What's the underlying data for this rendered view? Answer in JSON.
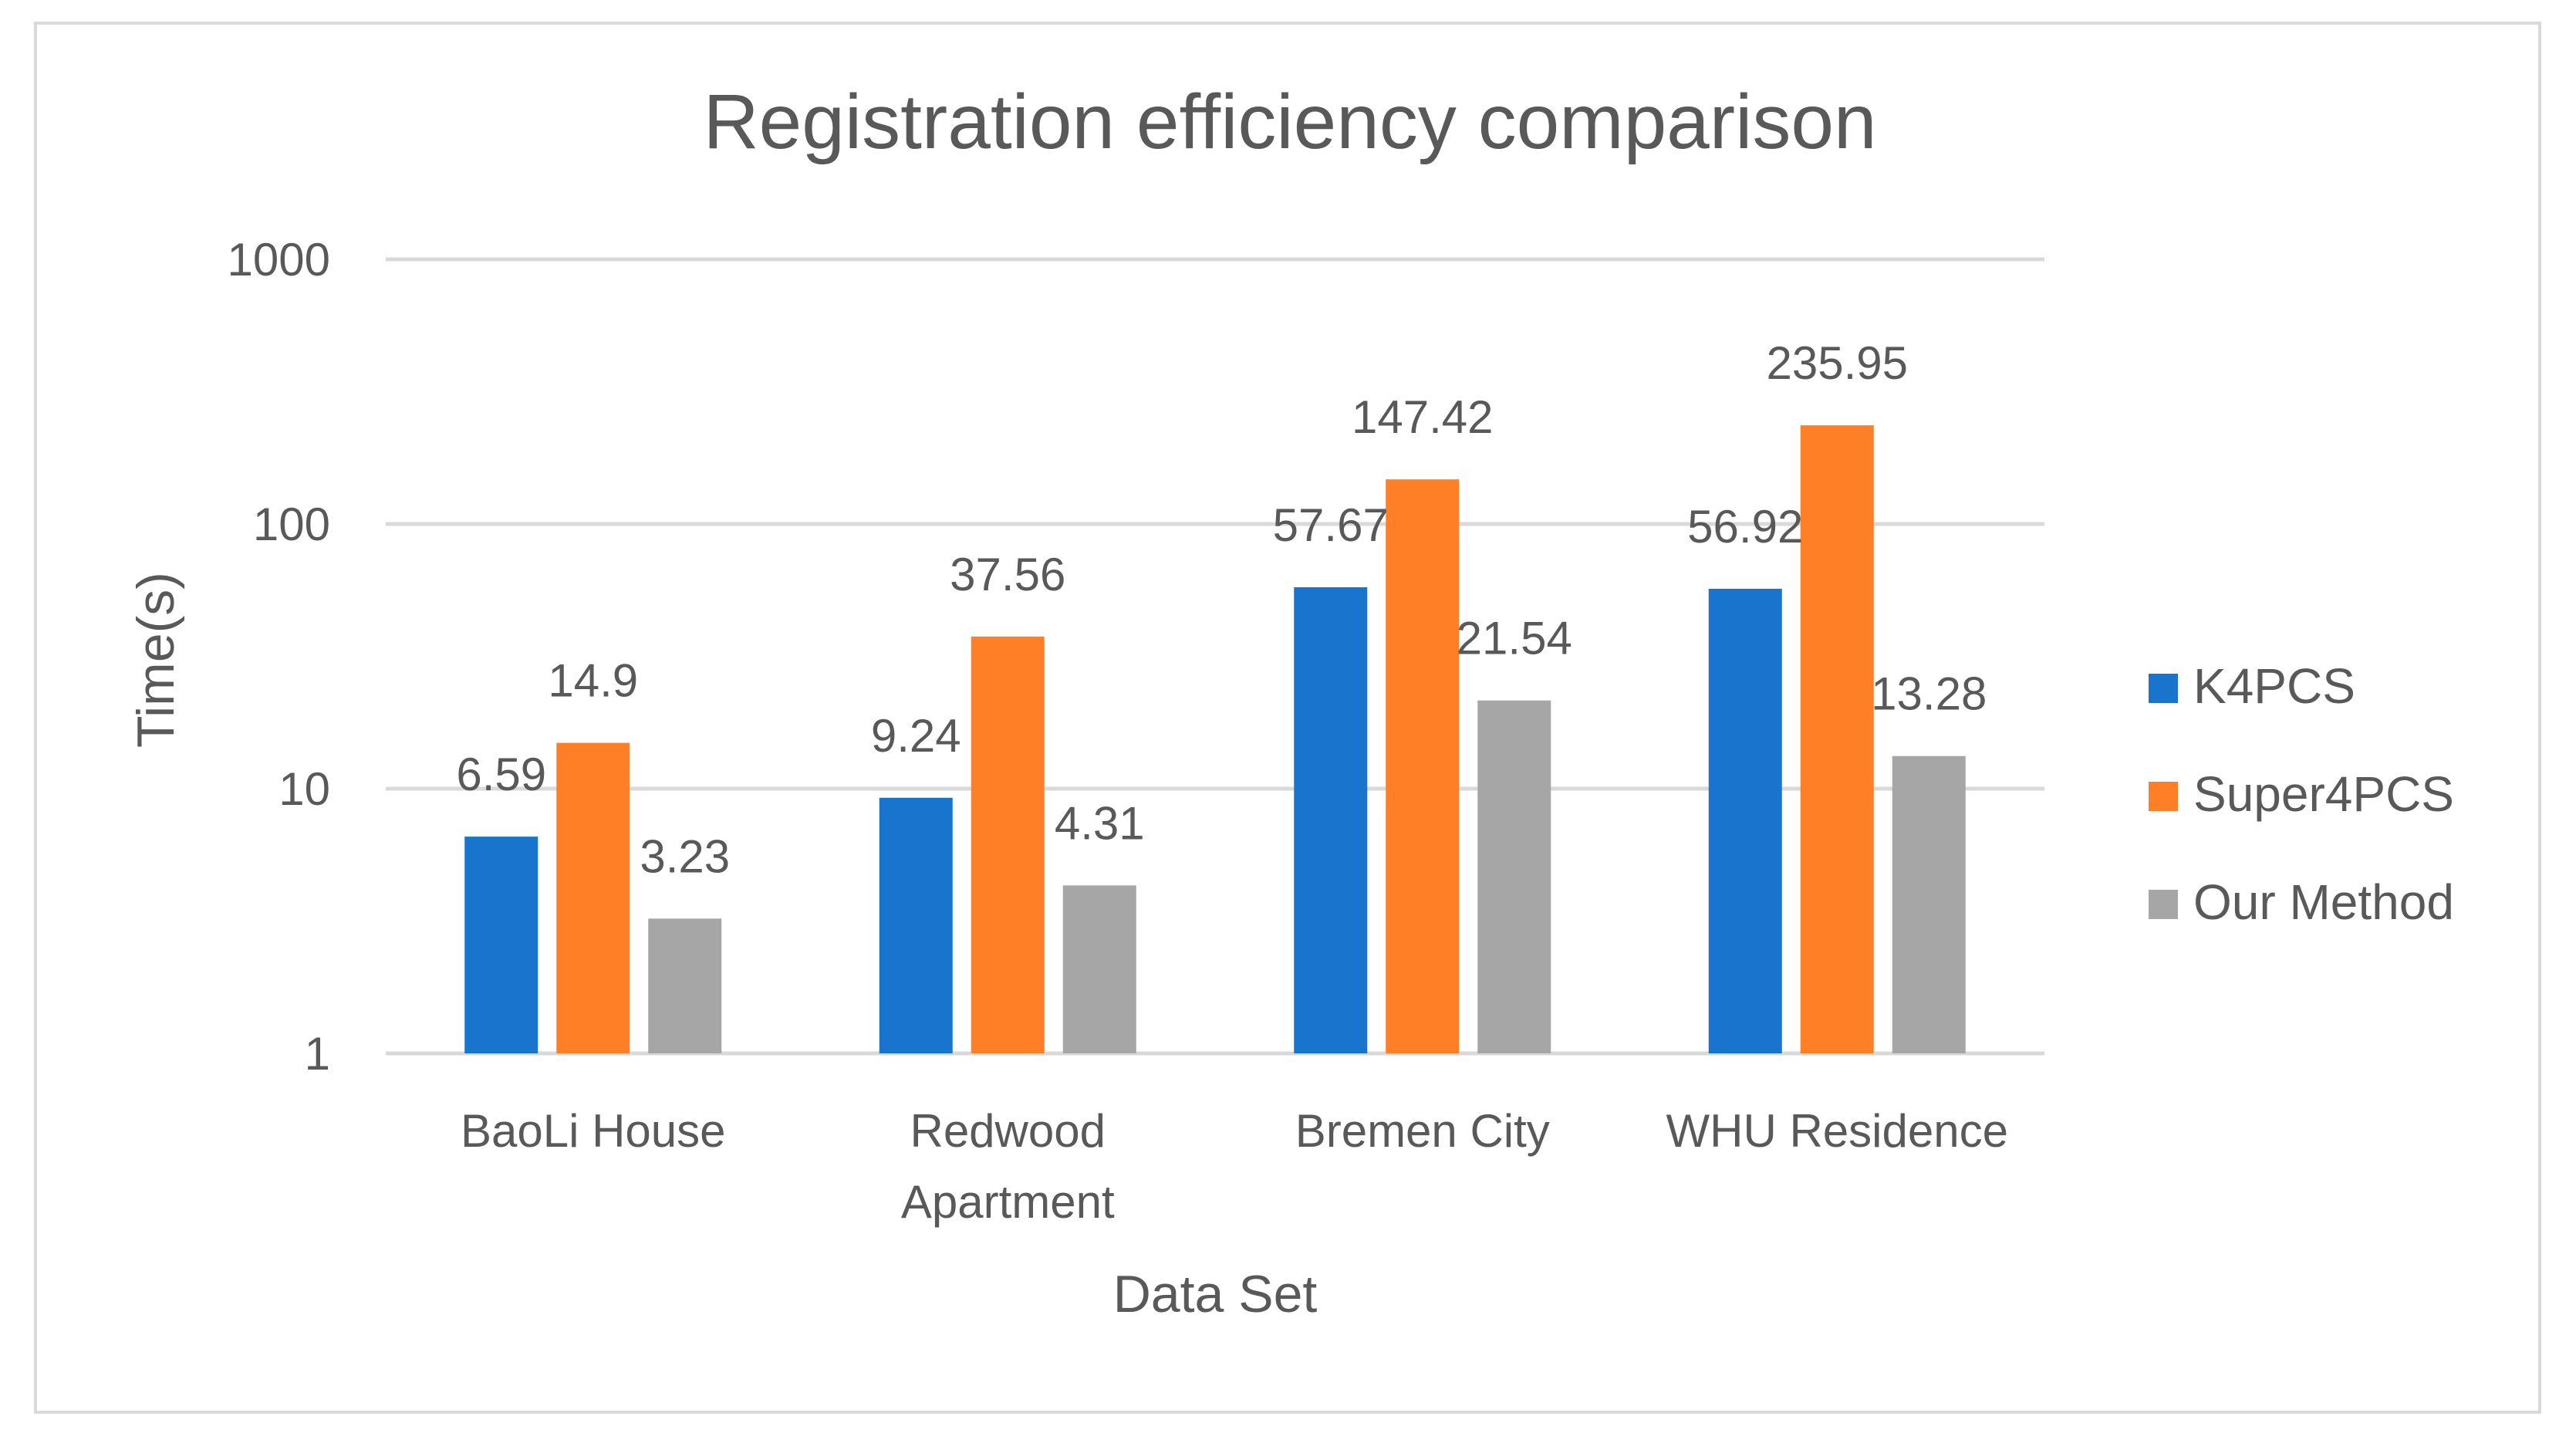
{
  "chart_data": {
    "type": "bar",
    "title": "Registration efficiency comparison",
    "xlabel": "Data Set",
    "ylabel": "Time(s)",
    "yscale": "log",
    "ylim": [
      1,
      1000
    ],
    "yticks": [
      "1",
      "10",
      "100",
      "1000"
    ],
    "categories": [
      [
        "BaoLi House"
      ],
      [
        "Redwood",
        "Apartment"
      ],
      [
        "Bremen City"
      ],
      [
        "WHU Residence"
      ]
    ],
    "series": [
      {
        "name": "K4PCS",
        "color": "#1874cd",
        "values": [
          6.59,
          9.24,
          57.67,
          56.92
        ],
        "labels": [
          "6.59",
          "9.24",
          "57.67",
          "56.92"
        ]
      },
      {
        "name": "Super4PCS",
        "color": "#ff7f27",
        "values": [
          14.9,
          37.56,
          147.42,
          235.95
        ],
        "labels": [
          "14.9",
          "37.56",
          "147.42",
          "235.95"
        ]
      },
      {
        "name": "Our Method",
        "color": "#a6a6a6",
        "values": [
          3.23,
          4.31,
          21.54,
          13.28
        ],
        "labels": [
          "3.23",
          "4.31",
          "21.54",
          "13.28"
        ]
      }
    ],
    "legend_position": "right",
    "grid": true
  }
}
